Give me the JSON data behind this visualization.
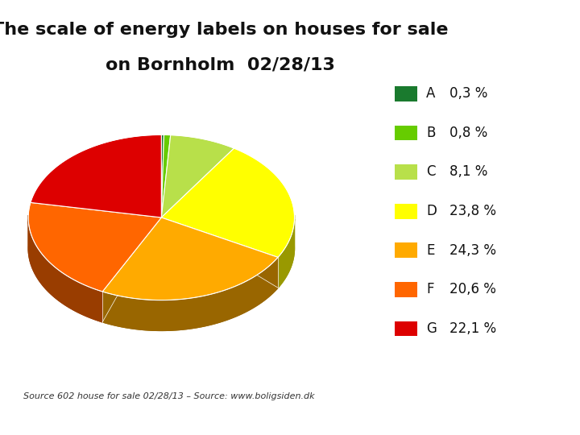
{
  "title_line1": "The scale of energy labels on houses for sale",
  "title_line2": "on Bornholm  02/28/13",
  "labels": [
    "A",
    "B",
    "C",
    "D",
    "E",
    "F",
    "G"
  ],
  "values": [
    0.3,
    0.8,
    8.1,
    23.8,
    24.3,
    20.6,
    22.1
  ],
  "colors": [
    "#1a7a2e",
    "#66cc00",
    "#b8e04a",
    "#ffff00",
    "#ffaa00",
    "#ff6600",
    "#dd0000"
  ],
  "side_colors": [
    "#0f4a1a",
    "#3d7a00",
    "#6e8a2a",
    "#999900",
    "#996600",
    "#993d00",
    "#880000"
  ],
  "legend_labels": [
    "A",
    "B",
    "C",
    "D",
    "E",
    "F",
    "G"
  ],
  "legend_values": [
    "0,3 %",
    "0,8 %",
    "8,1 %",
    "23,8 %",
    "24,3 %",
    "20,6 %",
    "22,1 %"
  ],
  "source_text": "Source 602 house for sale 02/28/13 – Source: www.boligsiden.dk",
  "background_color": "#ffffff",
  "title_fontsize": 16,
  "legend_fontsize": 12
}
